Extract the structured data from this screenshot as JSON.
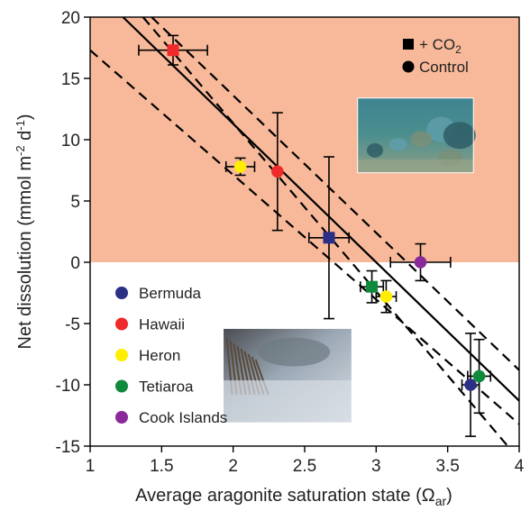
{
  "chart_data": {
    "type": "scatter",
    "xlabel_main": "Average aragonite saturation state (Ω",
    "xlabel_sub": "ar",
    "xlabel_end": ")",
    "ylabel": "Net dissolution (mmol m",
    "ylabel_sup1": "-2",
    "ylabel_mid": " d",
    "ylabel_sup2": "-1",
    "ylabel_end": ")",
    "xlim": [
      1,
      4
    ],
    "ylim": [
      -15,
      20
    ],
    "x_ticks": [
      1,
      1.5,
      2,
      2.5,
      3,
      3.5,
      4
    ],
    "x_tick_labels": [
      "1",
      "1.5",
      "2",
      "2.5",
      "3",
      "3.5",
      "4"
    ],
    "y_ticks": [
      -15,
      -10,
      -5,
      0,
      5,
      10,
      15,
      20
    ],
    "y_tick_labels": [
      "-15",
      "-10",
      "-5",
      "0",
      "5",
      "10",
      "15",
      "20"
    ],
    "shaded_region": {
      "from_y": 0,
      "to_y": 20,
      "color": "#f8b99a"
    },
    "legend_treatment": [
      {
        "label": "+ CO",
        "sub": "2",
        "marker": "square"
      },
      {
        "label": "Control",
        "marker": "circle"
      }
    ],
    "sites": [
      {
        "name": "Bermuda",
        "color": "#2b2f86"
      },
      {
        "name": "Hawaii",
        "color": "#ee2a2a"
      },
      {
        "name": "Heron",
        "color": "#ffee00"
      },
      {
        "name": "Tetiaroa",
        "color": "#0f8a3c"
      },
      {
        "name": "Cook Islands",
        "color": "#8a2a9a"
      }
    ],
    "points": [
      {
        "site": "Hawaii",
        "marker": "square",
        "x": 1.58,
        "y": 17.3,
        "xerr": 0.24,
        "yerr": 1.2
      },
      {
        "site": "Hawaii",
        "marker": "circle",
        "x": 2.31,
        "y": 7.4,
        "xerr": 0,
        "yerr": 4.8
      },
      {
        "site": "Heron",
        "marker": "circle",
        "x": 2.05,
        "y": 7.8,
        "xerr": 0.1,
        "yerr": 0.7
      },
      {
        "site": "Bermuda",
        "marker": "square",
        "x": 2.67,
        "y": 2.0,
        "xerr": 0.14,
        "yerr": 6.6
      },
      {
        "site": "Cook Islands",
        "marker": "circle",
        "x": 3.31,
        "y": 0.0,
        "xerr": 0.21,
        "yerr": 1.5
      },
      {
        "site": "Tetiaroa",
        "marker": "square",
        "x": 2.97,
        "y": -2.0,
        "xerr": 0.08,
        "yerr": 1.3
      },
      {
        "site": "Heron",
        "marker": "circle",
        "x": 3.07,
        "y": -2.8,
        "xerr": 0.07,
        "yerr": 1.3
      },
      {
        "site": "Bermuda",
        "marker": "circle",
        "x": 3.66,
        "y": -10.0,
        "xerr": 0.06,
        "yerr": 4.2
      },
      {
        "site": "Tetiaroa",
        "marker": "circle",
        "x": 3.72,
        "y": -9.3,
        "xerr": 0.08,
        "yerr": 3.0
      }
    ],
    "regression": {
      "solid": [
        [
          1.23,
          20
        ],
        [
          4,
          -11.3
        ]
      ],
      "dash_upper": [
        [
          1.43,
          20
        ],
        [
          4,
          -8.8
        ]
      ],
      "dash_lower": [
        [
          1,
          17.3
        ],
        [
          4,
          -13.2
        ]
      ],
      "dash_steep": [
        [
          1.37,
          20
        ],
        [
          3.92,
          -15
        ]
      ]
    },
    "inset_photos": [
      {
        "name": "coral-reef-photo-top",
        "x0": 2.87,
        "x1": 3.68,
        "y0": 7.3,
        "y1": 13.4,
        "palette": [
          "#5e9eaa",
          "#2f5d66",
          "#7a8f78"
        ]
      },
      {
        "name": "coral-reef-photo-bottom",
        "x0": 1.93,
        "x1": 2.83,
        "y0": -13.1,
        "y1": -5.4,
        "palette": [
          "#b9c6d4",
          "#6e7a82",
          "#8c7a66"
        ]
      }
    ]
  }
}
